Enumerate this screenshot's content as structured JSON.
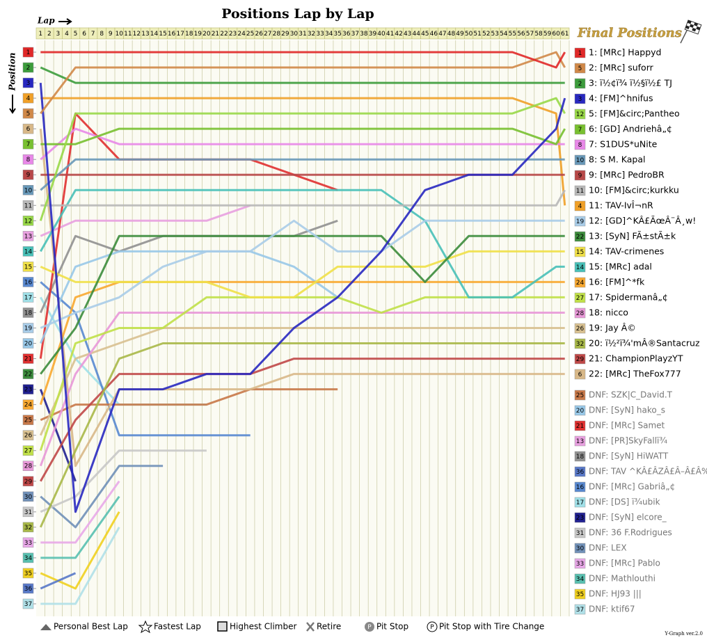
{
  "chart_data": {
    "type": "line",
    "title": "Positions Lap by Lap",
    "x_label": "Lap",
    "y_label": "Position",
    "panel_title": "Final Positions",
    "version": "Y-Graph ver.2.0",
    "legend_items": [
      "Personal Best Lap",
      "Fastest Lap",
      "Highest Climber",
      "Retire",
      "Pit Stop",
      "Pit Stop with Tire Change"
    ],
    "y_inverted": true,
    "xlim": [
      0.5,
      61.5
    ],
    "ylim": [
      0.5,
      37.5
    ],
    "xticks": [
      1,
      2,
      3,
      4,
      5,
      6,
      7,
      8,
      9,
      10,
      11,
      12,
      13,
      14,
      15,
      16,
      17,
      18,
      19,
      20,
      21,
      22,
      23,
      24,
      25,
      26,
      27,
      28,
      29,
      30,
      31,
      32,
      33,
      34,
      35,
      36,
      37,
      38,
      39,
      40,
      41,
      42,
      43,
      44,
      45,
      46,
      47,
      48,
      49,
      50,
      51,
      52,
      53,
      54,
      55,
      56,
      57,
      58,
      59,
      60,
      61
    ],
    "yticks": [
      1,
      2,
      3,
      4,
      5,
      6,
      7,
      8,
      9,
      10,
      11,
      12,
      13,
      14,
      15,
      16,
      17,
      18,
      19,
      20,
      21,
      22,
      23,
      24,
      25,
      26,
      27,
      28,
      29,
      30,
      31,
      32,
      33,
      34,
      35,
      36,
      37
    ],
    "grid": true,
    "x": [
      1,
      5,
      10,
      15,
      20,
      25,
      30,
      35,
      40,
      45,
      50,
      55,
      60,
      61
    ],
    "series": [
      {
        "name": "1: [MRc] Happyd",
        "start": 1,
        "color": "#e02828",
        "values": [
          1,
          1,
          1,
          1,
          1,
          1,
          1,
          1,
          1,
          1,
          1,
          1,
          2,
          1
        ]
      },
      {
        "name": "2: [MRc] suforr",
        "start": 5,
        "color": "#d08848",
        "values": [
          5,
          2,
          2,
          2,
          2,
          2,
          2,
          2,
          2,
          2,
          2,
          2,
          1,
          2
        ]
      },
      {
        "name": "3: ï½¢ï¾ ï½§ï½£ TJ",
        "start": 2,
        "color": "#3c9c3c",
        "values": [
          2,
          3,
          3,
          3,
          3,
          3,
          3,
          3,
          3,
          3,
          3,
          3,
          3,
          3
        ]
      },
      {
        "name": "4: [FM]^hnifus",
        "start": 3,
        "color": "#2828c0",
        "values": [
          3,
          31,
          23,
          23,
          22,
          22,
          19,
          17,
          14,
          10,
          9,
          9,
          6,
          4
        ]
      },
      {
        "name": "5: [FM]&circ;Pantheo",
        "start": 12,
        "color": "#98d848",
        "values": [
          12,
          5,
          5,
          5,
          5,
          5,
          5,
          5,
          5,
          5,
          5,
          5,
          4,
          5
        ]
      },
      {
        "name": "6: [GD] Andriehâ„¢",
        "start": 7,
        "color": "#78c030",
        "values": [
          7,
          7,
          6,
          6,
          6,
          6,
          6,
          6,
          6,
          6,
          6,
          6,
          7,
          6
        ]
      },
      {
        "name": "7: S1DUS*uNite",
        "start": 8,
        "color": "#e888e8",
        "values": [
          8,
          6,
          7,
          7,
          7,
          7,
          7,
          7,
          7,
          7,
          7,
          7,
          7,
          7
        ]
      },
      {
        "name": "8: S M. Kapal",
        "start": 10,
        "color": "#6898b8",
        "values": [
          10,
          8,
          8,
          8,
          8,
          8,
          8,
          8,
          8,
          8,
          8,
          8,
          8,
          8
        ]
      },
      {
        "name": "9: [MRc] PedroBR",
        "start": 9,
        "color": "#b84848",
        "values": [
          9,
          9,
          9,
          9,
          9,
          9,
          9,
          9,
          9,
          9,
          9,
          9,
          9,
          9
        ]
      },
      {
        "name": "10: [FM]&circ;kurkku",
        "start": 11,
        "color": "#b8b8b8",
        "values": [
          11,
          11,
          11,
          11,
          11,
          11,
          11,
          11,
          11,
          11,
          11,
          11,
          11,
          10
        ]
      },
      {
        "name": "11: TAV-IvÎ¬nR",
        "start": 4,
        "color": "#f0a028",
        "values": [
          4,
          4,
          4,
          4,
          4,
          4,
          4,
          4,
          4,
          4,
          4,
          4,
          5,
          11
        ]
      },
      {
        "name": "12: [GD]^KÂ£ÃœÂ¨Â¸w!",
        "start": 19,
        "color": "#a8cce8",
        "values": [
          19,
          18,
          17,
          15,
          14,
          14,
          12,
          14,
          14,
          12,
          12,
          12,
          12,
          12
        ]
      },
      {
        "name": "13: [SyN] FÃ±stÃ±k",
        "start": 22,
        "color": "#3c8c3c",
        "values": [
          22,
          19,
          13,
          13,
          13,
          13,
          13,
          13,
          13,
          16,
          13,
          13,
          13,
          13
        ]
      },
      {
        "name": "14: TAV-crimenes",
        "start": 15,
        "color": "#f0e048",
        "values": [
          15,
          16,
          16,
          16,
          16,
          17,
          17,
          15,
          15,
          15,
          14,
          14,
          14,
          14
        ]
      },
      {
        "name": "15: [MRc] adal",
        "start": 14,
        "color": "#48c0b8",
        "values": [
          14,
          10,
          10,
          10,
          10,
          10,
          10,
          10,
          10,
          12,
          17,
          17,
          15,
          15
        ]
      },
      {
        "name": "16: [FM]^*fk",
        "start": 24,
        "color": "#f8a830",
        "values": [
          24,
          17,
          16,
          16,
          16,
          16,
          16,
          16,
          16,
          16,
          16,
          16,
          16,
          16
        ]
      },
      {
        "name": "17: Spidermanâ„¢",
        "start": 27,
        "color": "#c0e048",
        "values": [
          27,
          20,
          19,
          19,
          17,
          17,
          17,
          17,
          18,
          17,
          17,
          17,
          17,
          17
        ]
      },
      {
        "name": "18: nicco",
        "start": 28,
        "color": "#e898d8",
        "values": [
          28,
          22,
          18,
          18,
          18,
          18,
          18,
          18,
          18,
          18,
          18,
          18,
          18,
          18
        ]
      },
      {
        "name": "19: Jay Â©",
        "start": 26,
        "color": "#d8c090",
        "values": [
          26,
          21,
          20,
          19,
          19,
          19,
          19,
          19,
          19,
          19,
          19,
          19,
          19,
          19
        ]
      },
      {
        "name": "20: ï½²ï¾'mÂ®Santacruz",
        "start": 32,
        "color": "#a8b848",
        "values": [
          32,
          27,
          21,
          20,
          20,
          20,
          20,
          20,
          20,
          20,
          20,
          20,
          20,
          20
        ]
      },
      {
        "name": "21: ChampionPlayzYT",
        "start": 29,
        "color": "#c04848",
        "values": [
          29,
          25,
          22,
          22,
          22,
          22,
          21,
          21,
          21,
          21,
          21,
          21,
          21,
          21
        ]
      },
      {
        "name": "22: [MRc] TheFox777",
        "start": 6,
        "color": "#d8b888",
        "values": [
          6,
          28,
          23,
          23,
          23,
          23,
          22,
          22,
          22,
          22,
          22,
          22,
          22,
          22
        ]
      },
      {
        "name": "DNF: SZK|C_David.T",
        "start": 25,
        "color": "#c87848",
        "values": [
          25,
          24,
          24,
          24,
          24,
          23,
          23,
          23,
          null,
          null,
          null,
          null,
          null,
          null
        ]
      },
      {
        "name": "DNF: [SyN] hako_s",
        "start": 20,
        "color": "#98c8e8",
        "values": [
          20,
          15,
          14,
          14,
          14,
          14,
          15,
          17,
          null,
          null,
          null,
          null,
          null,
          null
        ]
      },
      {
        "name": "DNF: [MRc] Samet",
        "start": 21,
        "color": "#e03030",
        "values": [
          21,
          5,
          8,
          8,
          8,
          8,
          9,
          10,
          null,
          null,
          null,
          null,
          null,
          null
        ]
      },
      {
        "name": "DNF: [PR]SkyFallï¾",
        "start": 13,
        "color": "#e8a0e0",
        "values": [
          13,
          12,
          12,
          12,
          12,
          11,
          null,
          null,
          null,
          null,
          null,
          null,
          null,
          null
        ]
      },
      {
        "name": "DNF: [SyN] HiWATT",
        "start": 18,
        "color": "#909090",
        "values": [
          18,
          13,
          14,
          13,
          13,
          13,
          13,
          12,
          null,
          null,
          null,
          null,
          null,
          null
        ]
      },
      {
        "name": "DNF: TAV ^KÂ£ÂZÂ£Â–Â£Â‰",
        "start": 36,
        "color": "#5878c8",
        "values": [
          36,
          35,
          null,
          null,
          null,
          null,
          null,
          null,
          null,
          null,
          null,
          null,
          null,
          null
        ]
      },
      {
        "name": "DNF: [MRc] Gabriâ„¢",
        "start": 16,
        "color": "#5888d0",
        "values": [
          16,
          18,
          26,
          26,
          26,
          26,
          null,
          null,
          null,
          null,
          null,
          null,
          null,
          null
        ]
      },
      {
        "name": "DNF: [DS] ï¾ubik",
        "start": 17,
        "color": "#a0e0e8",
        "values": [
          17,
          21,
          24,
          24,
          24,
          null,
          null,
          null,
          null,
          null,
          null,
          null,
          null,
          null
        ]
      },
      {
        "name": "DNF: [SyN] elcore_",
        "start": 23,
        "color": "#202090",
        "values": [
          23,
          29,
          null,
          null,
          null,
          null,
          null,
          null,
          null,
          null,
          null,
          null,
          null,
          null
        ]
      },
      {
        "name": "DNF: 36 F.Rodrigues",
        "start": 31,
        "color": "#c8c8c8",
        "values": [
          31,
          30,
          27,
          27,
          27,
          null,
          null,
          null,
          null,
          null,
          null,
          null,
          null,
          null
        ]
      },
      {
        "name": "DNF: LEX",
        "start": 30,
        "color": "#7090b8",
        "values": [
          30,
          32,
          28,
          28,
          null,
          null,
          null,
          null,
          null,
          null,
          null,
          null,
          null,
          null
        ]
      },
      {
        "name": "DNF: [MRc] Pablo",
        "start": 33,
        "color": "#e8a8e8",
        "values": [
          33,
          33,
          29,
          null,
          null,
          null,
          null,
          null,
          null,
          null,
          null,
          null,
          null,
          null
        ]
      },
      {
        "name": "DNF: Mathlouthi",
        "start": 34,
        "color": "#58c0b0",
        "values": [
          34,
          34,
          30,
          null,
          null,
          null,
          null,
          null,
          null,
          null,
          null,
          null,
          null,
          null
        ]
      },
      {
        "name": "DNF: HJ93 |||",
        "start": 35,
        "color": "#f0d020",
        "values": [
          35,
          36,
          31,
          null,
          null,
          null,
          null,
          null,
          null,
          null,
          null,
          null,
          null,
          null
        ]
      },
      {
        "name": "DNF: ktif67",
        "start": 37,
        "color": "#b0e0e8",
        "values": [
          37,
          37,
          32,
          null,
          null,
          null,
          null,
          null,
          null,
          null,
          null,
          null,
          null,
          null
        ]
      }
    ]
  }
}
